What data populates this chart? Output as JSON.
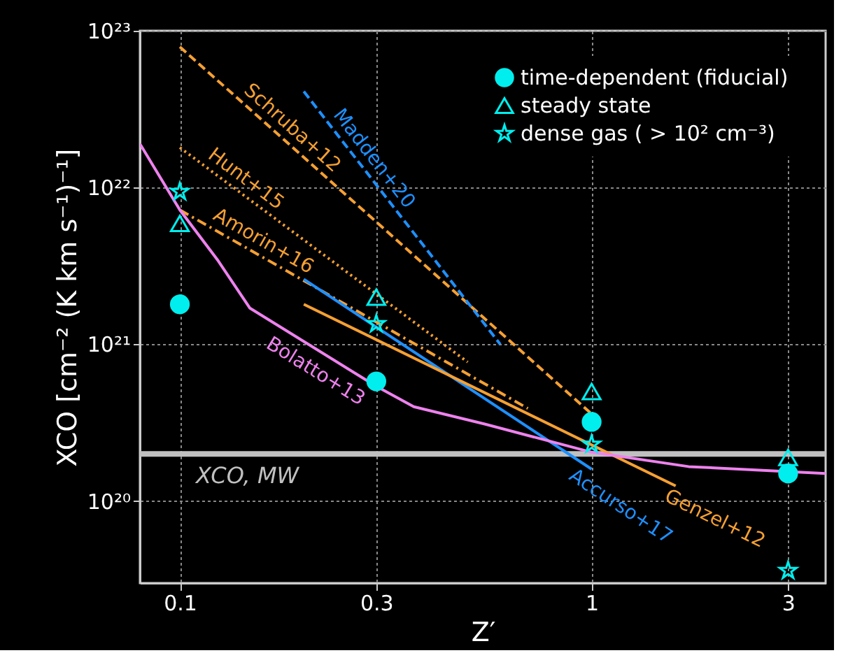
{
  "chart_data": {
    "type": "scatter",
    "xlabel": "Z′",
    "ylabel": "XCO [cm⁻² (K km s⁻¹)⁻¹]",
    "log": "xy",
    "grid": true,
    "legend": "top right",
    "xlim": [
      0.08,
      3.7
    ],
    "ylim": [
      3e+19,
      1e+23
    ],
    "xticks": [
      0.1,
      0.3,
      1,
      3
    ],
    "yticks": [
      {
        "value": 1e+20,
        "label": "10²⁰"
      },
      {
        "value": 1e+21,
        "label": "10²¹"
      },
      {
        "value": 1e+22,
        "label": "10²²"
      },
      {
        "value": 1e+23,
        "label": "10²³"
      }
    ],
    "ref_lines": [
      {
        "axis": "y",
        "value": 2e+20,
        "label": "XCO, MW",
        "color": "#c0c0c0"
      }
    ],
    "series": [
      {
        "name": "time-dependent (fiducial)",
        "marker": "circle",
        "color": "#00eeee",
        "x": [
          0.1,
          0.3,
          1,
          3
        ],
        "values": [
          1.8e+21,
          5.8e+20,
          3.2e+20,
          1.5e+20
        ]
      },
      {
        "name": "steady state",
        "marker": "triangle",
        "color": "#00eeee",
        "x": [
          0.1,
          0.3,
          1,
          3
        ],
        "values": [
          5.9e+21,
          2e+21,
          5e+20,
          1.9e+20
        ]
      },
      {
        "name": "dense gas ( > 10² cm⁻³)",
        "marker": "star",
        "color": "#00eeee",
        "x": [
          0.1,
          0.3,
          1,
          3
        ],
        "values": [
          9.4e+21,
          1.35e+21,
          2.3e+20,
          3.6e+19
        ]
      },
      {
        "name": "Schruba+12",
        "type": "line",
        "line_style": "dashed",
        "color": "#f5a033",
        "x": [
          0.1,
          1
        ],
        "values": [
          7.9e+22,
          3.6e+20
        ]
      },
      {
        "name": "Madden+20",
        "type": "line",
        "line_style": "dashed",
        "color": "#1e90ff",
        "x": [
          0.2,
          0.6
        ],
        "values": [
          4.1e+22,
          1e+21
        ]
      },
      {
        "name": "Hunt+15",
        "type": "line",
        "line_style": "dotted",
        "color": "#f5a033",
        "x": [
          0.1,
          0.5
        ],
        "values": [
          1.8e+22,
          7.7e+20
        ]
      },
      {
        "name": "Amorin+16",
        "type": "line",
        "line_style": "dashdot",
        "color": "#f5a033",
        "x": [
          0.1,
          0.7
        ],
        "values": [
          7.2e+21,
          3.9e+20
        ]
      },
      {
        "name": "Accurso+17",
        "type": "line",
        "line_style": "solid",
        "color": "#1e90ff",
        "x": [
          0.2,
          1
        ],
        "values": [
          2.6e+21,
          1.6e+20
        ]
      },
      {
        "name": "Genzel+12",
        "type": "line",
        "line_style": "solid",
        "color": "#f5a033",
        "x": [
          0.2,
          1.6
        ],
        "values": [
          1.8e+21,
          1.25e+20
        ]
      },
      {
        "name": "Bolatto+13",
        "type": "line",
        "line_style": "solid",
        "color": "#ee82ee",
        "x": [
          0.08,
          0.1,
          0.124,
          0.148,
          0.3,
          0.37,
          0.55,
          1,
          1.72,
          3.7
        ],
        "values": [
          1.9e+22,
          7.2e+21,
          3.4e+21,
          1.7e+21,
          5.4e+20,
          4e+20,
          3.1e+20,
          2.05e+20,
          1.66e+20,
          1.5e+20
        ]
      }
    ]
  }
}
